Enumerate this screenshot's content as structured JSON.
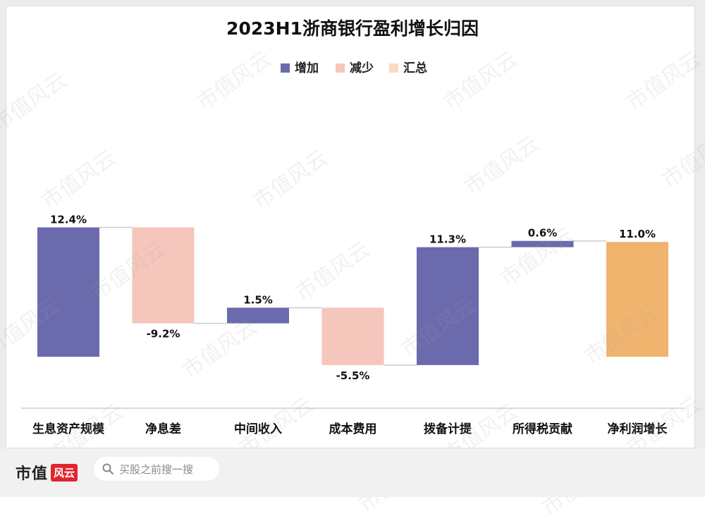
{
  "chart_data": {
    "type": "waterfall",
    "title": "2023H1浙商银行盈利增长归因",
    "legend": [
      {
        "name": "增加",
        "color": "#6b6aad"
      },
      {
        "name": "减少",
        "color": "#f5c6bb"
      },
      {
        "name": "汇总",
        "color": "#f9dcc6"
      }
    ],
    "categories": [
      "生息资产规模",
      "净息差",
      "中间收入",
      "成本费用",
      "拨备计提",
      "所得税贡献",
      "净利润增长"
    ],
    "values": [
      12.4,
      -9.2,
      1.5,
      -5.5,
      11.3,
      0.6,
      11.0
    ],
    "labels": [
      "12.4%",
      "-9.2%",
      "1.5%",
      "-5.5%",
      "11.3%",
      "0.6%",
      "11.0%"
    ],
    "kinds": [
      "increase",
      "decrease",
      "increase",
      "decrease",
      "increase",
      "increase",
      "total"
    ],
    "colors": {
      "increase": "#6b6aad",
      "decrease": "#f5c6bb",
      "total": "#f0b46e"
    }
  },
  "watermark": "市值风云",
  "footer": {
    "brand_text": "市值",
    "brand_seal": "风云",
    "search_placeholder": "买股之前搜一搜"
  }
}
